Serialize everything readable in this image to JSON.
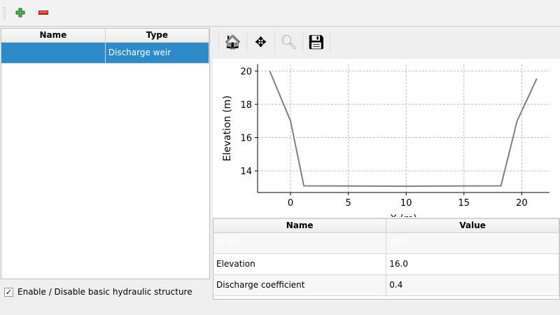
{
  "toolbar": {
    "add_icon": "plus-icon",
    "remove_icon": "minus-icon"
  },
  "structures_table": {
    "headers": [
      "Name",
      "Type"
    ],
    "rows": [
      {
        "name": "",
        "type": "Discharge weir",
        "selected": true
      }
    ]
  },
  "enable_checkbox": {
    "label": "Enable / Disable basic hydraulic structure",
    "checked": true,
    "mark": "✓"
  },
  "plot_toolbar": {
    "icons": [
      "home-icon",
      "pan-icon",
      "zoom-icon",
      "save-icon"
    ]
  },
  "chart_data": {
    "type": "line",
    "xlabel": "X (m)",
    "ylabel": "Elevation (m)",
    "xlim": [
      -2.85,
      22.4
    ],
    "ylim": [
      12.7,
      20.4
    ],
    "xticks": [
      0,
      5,
      10,
      15,
      20
    ],
    "yticks": [
      14,
      16,
      18,
      20
    ],
    "grid": true,
    "color": "#808080",
    "series": [
      {
        "x": [
          -1.8,
          0,
          1.15,
          10,
          18.2,
          19.6,
          21.3
        ],
        "y": [
          20,
          17.0,
          13.1,
          13.08,
          13.1,
          17.0,
          19.55
        ]
      }
    ]
  },
  "params_table": {
    "headers": [
      "Name",
      "Value"
    ],
    "rows": [
      {
        "name": "Width",
        "value": "10.0",
        "selected": true
      },
      {
        "name": "Elevation",
        "value": "16.0"
      },
      {
        "name": "Discharge coefficient",
        "value": "0.4"
      }
    ]
  },
  "colors": {
    "selection": "#2e8bc9"
  }
}
